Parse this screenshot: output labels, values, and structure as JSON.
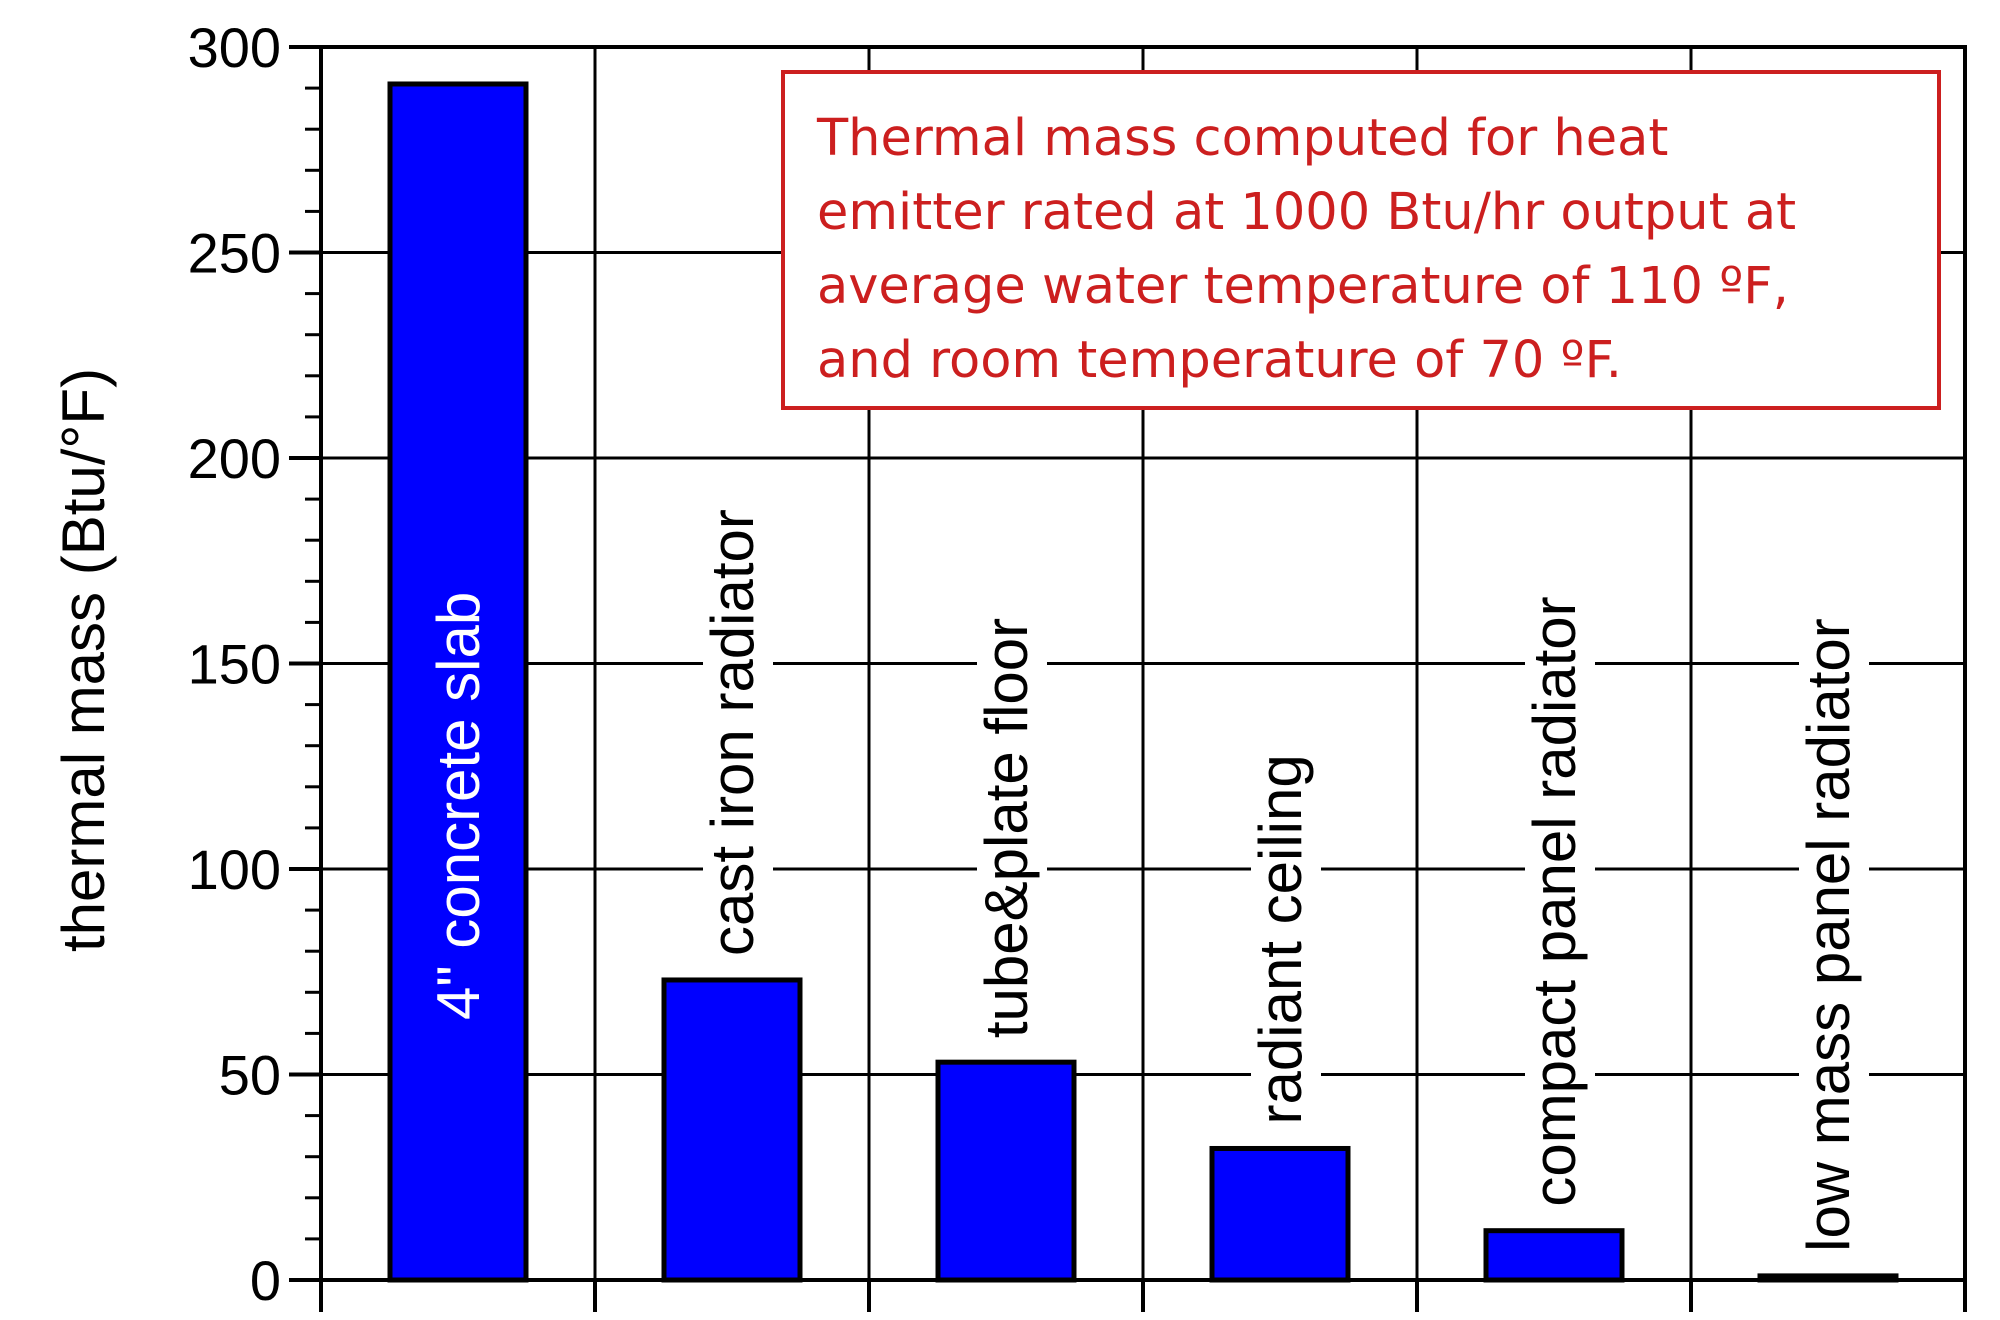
{
  "chart_data": {
    "type": "bar",
    "categories": [
      "4\"  concrete slab",
      "cast iron radiator",
      "tube&plate floor",
      "radiant ceiling",
      "compact panel radiator",
      "low mass panel radiator"
    ],
    "values": [
      291,
      73,
      53,
      32,
      12,
      1
    ],
    "title": "",
    "xlabel": "",
    "ylabel": "thermal mass (Btu/°F)",
    "ylim": [
      0,
      300
    ],
    "yticks": [
      "0",
      "50",
      "100",
      "150",
      "200",
      "250",
      "300"
    ],
    "ytick_values": [
      0,
      50,
      100,
      150,
      200,
      250,
      300
    ],
    "y_minor_step": 10,
    "grid": true,
    "legend": "none",
    "bar_color": "#0000ff",
    "bar_edge_color": "#000000",
    "inside_label_color": "#ffffff",
    "outside_label_color": "#000000",
    "annotation": {
      "lines": [
        "Thermal mass computed for heat",
        "emitter rated at 1000 Btu/hr output at",
        "average water temperature of 110 ºF,",
        "and room temperature of 70 ºF."
      ],
      "color": "#cc1f1f"
    }
  }
}
